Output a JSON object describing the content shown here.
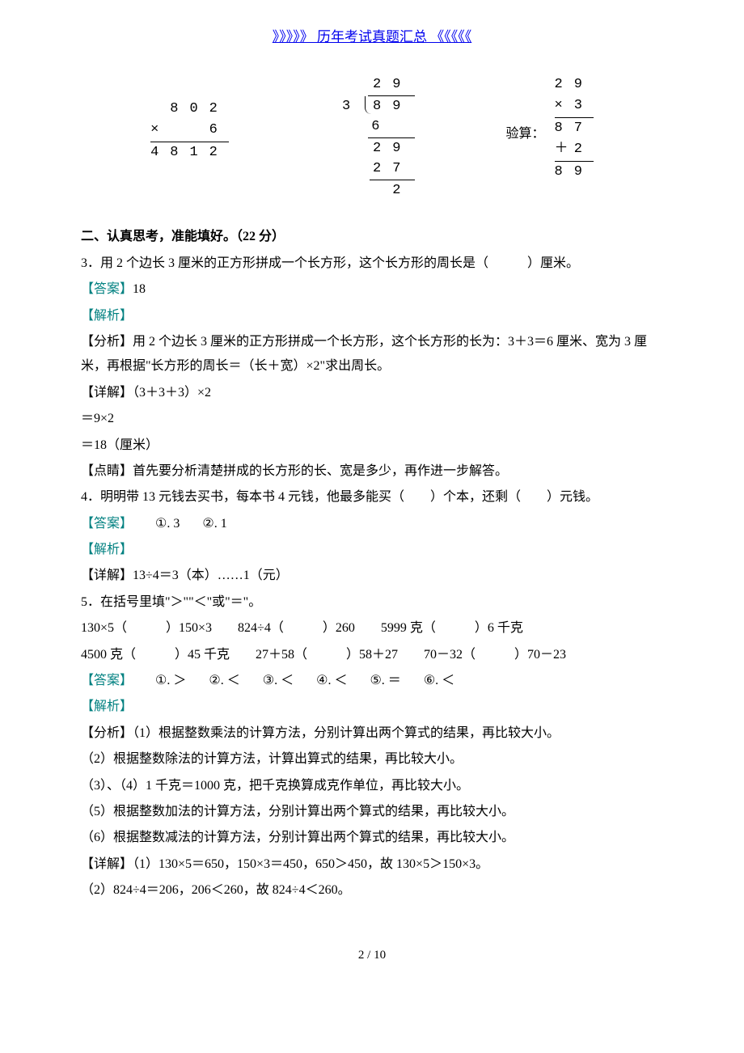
{
  "header": {
    "link_text": "》》》》》 历年考试真题汇总 《《《《《"
  },
  "math": {
    "mult1": {
      "a": "802",
      "op": "×",
      "b": "6",
      "result": "4812"
    },
    "div": {
      "quotient": "29",
      "divisor": "3",
      "dividend": "89",
      "s1": "6",
      "s2": "29",
      "s3": "27",
      "s4": "2"
    },
    "verify": {
      "label": "验算：",
      "a": "29",
      "op1": "×",
      "b": "3",
      "r1": "87",
      "op2": "＋",
      "c": "2",
      "r2": "89"
    }
  },
  "section2": {
    "title": "二、认真思考，准能填好。（22 分）"
  },
  "q3": {
    "text": "3．用 2 个边长 3 厘米的正方形拼成一个长方形，这个长方形的周长是（　　　）厘米。",
    "ans_label": "【答案】",
    "ans": "18",
    "jiexi": "【解析】",
    "fenxi": "【分析】用 2 个边长 3 厘米的正方形拼成一个长方形，这个长方形的长为：3＋3＝6 厘米、宽为 3 厘米，再根据\"长方形的周长＝（长＋宽）×2\"求出周长。",
    "xiangjie1": "【详解】（3＋3＋3）×2",
    "xiangjie2": "＝9×2",
    "xiangjie3": "＝18（厘米）",
    "dianjing": "【点睛】首先要分析清楚拼成的长方形的长、宽是多少，再作进一步解答。"
  },
  "q4": {
    "text": "4．明明带 13 元钱去买书，每本书 4 元钱，他最多能买（　　）个本，还剩（　　）元钱。",
    "ans_label": "【答案】",
    "ans1_num": "①.",
    "ans1": "3",
    "ans2_num": "②.",
    "ans2": "1",
    "jiexi": "【解析】",
    "xiangjie": "【详解】13÷4＝3（本）……1（元）"
  },
  "q5": {
    "text": "5．在括号里填\"＞\"\"＜\"或\"＝\"。",
    "row1": "130×5（　　　）150×3　　824÷4（　　　）260　　5999 克（　　　）6 千克",
    "row2": "4500 克（　　　）45 千克　　27＋58（　　　）58＋27　　70－32（　　　）70－23",
    "ans_label": "【答案】",
    "a1n": "①.",
    "a1": "＞",
    "a2n": "②.",
    "a2": "＜",
    "a3n": "③.",
    "a3": "＜",
    "a4n": "④.",
    "a4": "＜",
    "a5n": "⑤.",
    "a5": "＝",
    "a6n": "⑥.",
    "a6": "＜",
    "jiexi": "【解析】",
    "fx1": "【分析】（1）根据整数乘法的计算方法，分别计算出两个算式的结果，再比较大小。",
    "fx2": "（2）根据整数除法的计算方法，计算出算式的结果，再比较大小。",
    "fx3": "（3）、（4）1 千克＝1000 克，把千克换算成克作单位，再比较大小。",
    "fx4": "（5）根据整数加法的计算方法，分别计算出两个算式的结果，再比较大小。",
    "fx5": "（6）根据整数减法的计算方法，分别计算出两个算式的结果，再比较大小。",
    "xj1": "【详解】（1）130×5＝650，150×3＝450，650＞450，故 130×5＞150×3。",
    "xj2": "（2）824÷4＝206，206＜260，故 824÷4＜260。"
  },
  "footer": {
    "page": "2 / 10"
  }
}
